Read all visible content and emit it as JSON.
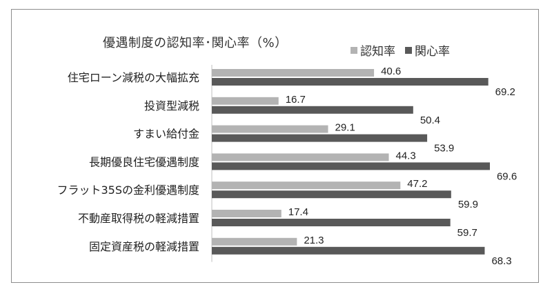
{
  "chart_data": {
    "type": "bar",
    "orientation": "horizontal",
    "title": "優遇制度の認知率･関心率（%）",
    "categories": [
      "住宅ローン減税の大幅拡充",
      "投資型減税",
      "すまい給付金",
      "長期優良住宅優遇制度",
      "フラット35Sの金利優遇制度",
      "不動産取得税の軽減措置",
      "固定資産税の軽減措置"
    ],
    "series": [
      {
        "name": "認知率",
        "color": "#b3b3b3",
        "values": [
          40.6,
          16.7,
          29.1,
          44.3,
          47.2,
          17.4,
          21.3
        ]
      },
      {
        "name": "関心率",
        "color": "#595959",
        "values": [
          69.2,
          50.4,
          53.9,
          69.6,
          59.9,
          59.7,
          68.3
        ]
      }
    ],
    "xlim": [
      0,
      100
    ],
    "grid": false,
    "legend_position": "top-right",
    "data_labels": true
  }
}
